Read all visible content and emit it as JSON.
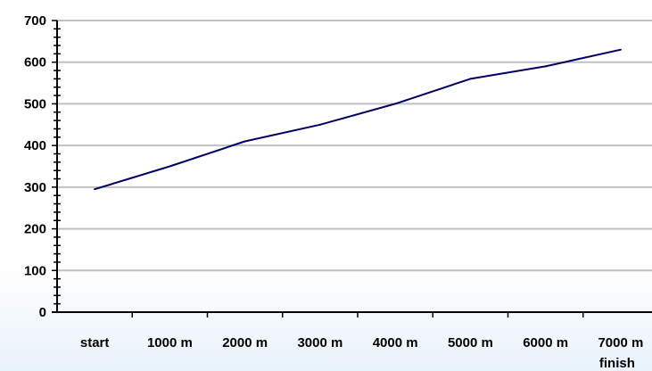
{
  "chart_data": {
    "type": "line",
    "categories": [
      "start",
      "1000 m",
      "2000 m",
      "3000 m",
      "4000 m",
      "5000 m",
      "6000 m",
      "7000 m"
    ],
    "last_category_sublabel": "finish",
    "series": [
      {
        "values": [
          295,
          350,
          410,
          450,
          500,
          560,
          590,
          630
        ],
        "color": "#000066"
      }
    ],
    "y_ticks": [
      "0",
      "100",
      "200",
      "300",
      "400",
      "500",
      "600",
      "700"
    ],
    "ylim": [
      0,
      700
    ],
    "y_minor_step": 20,
    "grid": "horizontal",
    "grid_color": "#c0c0c0",
    "axis_color": "#000000",
    "legend": "none"
  }
}
